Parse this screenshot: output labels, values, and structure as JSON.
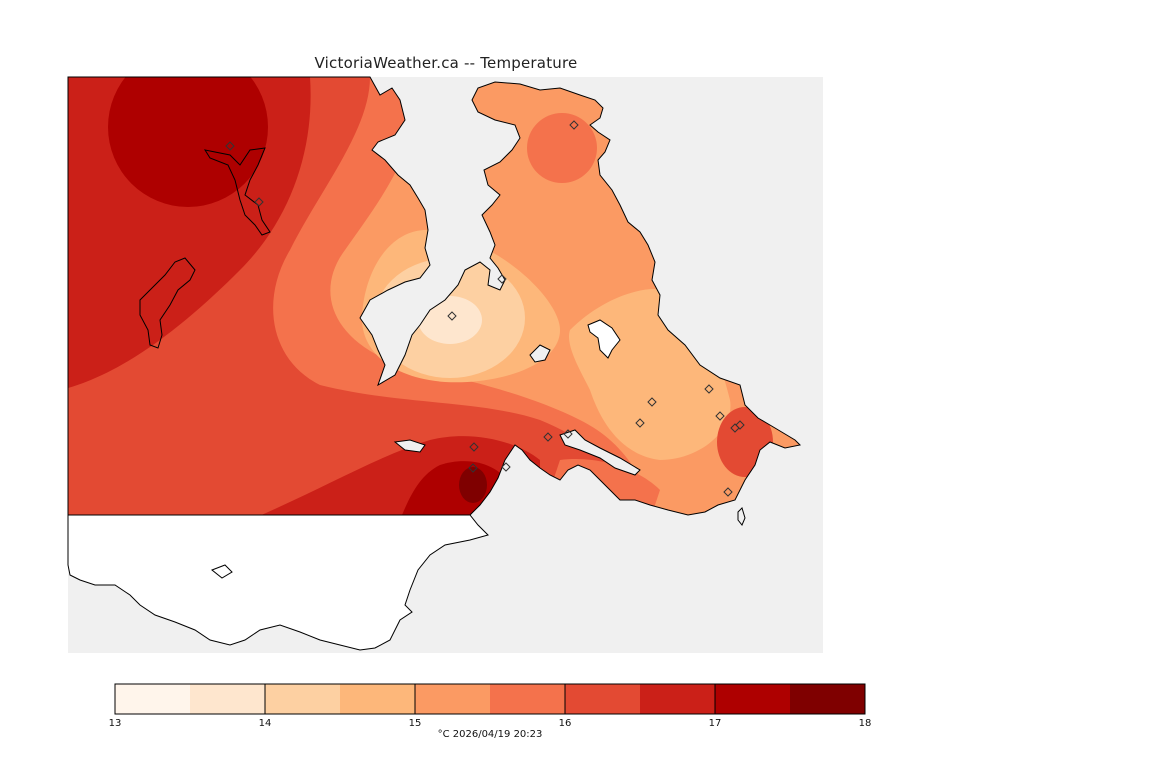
{
  "title": "VictoriaWeather.ca -- Temperature",
  "legend": {
    "min": 13,
    "max": 18,
    "step": 0.5,
    "labels": [
      "13",
      "14",
      "15",
      "16",
      "17",
      "18"
    ],
    "label_values": [
      13,
      14,
      15,
      16,
      17,
      18
    ],
    "colors": [
      "#fff5eb",
      "#fee6ce",
      "#fdd0a2",
      "#fdb77a",
      "#fb9a63",
      "#f4724c",
      "#e34a33",
      "#cb2018",
      "#ae0000",
      "#7f0000"
    ]
  },
  "caption": "°C  2026/04/19 20:23",
  "colors": {
    "background": "#f0f0f0",
    "land_unshaded": "#ffffff",
    "coastline": "#000000"
  },
  "stations": {
    "marker": "diamond",
    "count": 17
  }
}
